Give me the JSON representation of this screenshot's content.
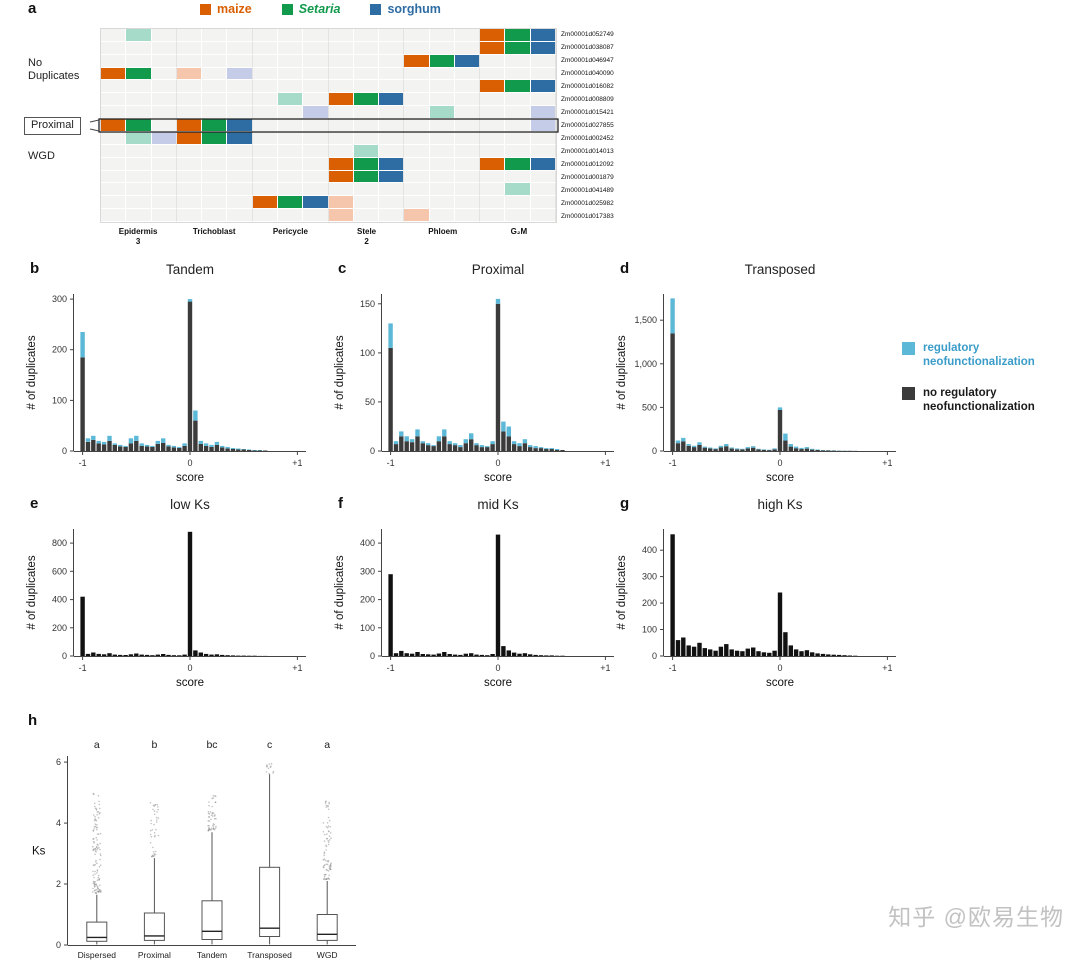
{
  "page": {
    "watermark": "知乎 @欧易生物"
  },
  "colors": {
    "maize": "#d95f02",
    "setaria": "#129a4c",
    "sorghum": "#2e6da4",
    "maize_light": "#f5c6ac",
    "setaria_light": "#a5dbc8",
    "sorghum_light": "#c5cce8",
    "regulatory": "#5bb8d7",
    "no_regulatory": "#3b3b3b",
    "single_bar": "#111111"
  },
  "panel_a": {
    "letter": "a",
    "legend": [
      {
        "label": "maize",
        "color": "#d95f02",
        "italic": false
      },
      {
        "label": "Setaria",
        "color": "#129a4c",
        "italic": true
      },
      {
        "label": "sorghum",
        "color": "#2e6da4",
        "italic": false
      }
    ],
    "column_groups": [
      {
        "lines": [
          "Epidermis",
          "3"
        ]
      },
      {
        "lines": [
          "Trichoblast"
        ]
      },
      {
        "lines": [
          "Pericycle"
        ]
      },
      {
        "lines": [
          "Stele",
          "2"
        ]
      },
      {
        "lines": [
          "Phloem"
        ]
      },
      {
        "lines": [
          "G₂M"
        ]
      }
    ],
    "row_groups": [
      {
        "label": "No Duplicates",
        "anchor_row": 3.2,
        "boxed": false
      },
      {
        "label": "Proximal",
        "anchor_row": 7.85,
        "boxed": true
      },
      {
        "label": "WGD",
        "anchor_row": 10.4,
        "boxed": false
      }
    ],
    "highlight_row": 8,
    "rows": [
      {
        "gene": "Zm00001d052749",
        "cells": {
          "1": "setaria_light",
          "15": "maize",
          "16": "setaria",
          "17": "sorghum"
        }
      },
      {
        "gene": "Zm00001d038087",
        "cells": {
          "15": "maize",
          "16": "setaria",
          "17": "sorghum"
        }
      },
      {
        "gene": "Zm00001d046947",
        "cells": {
          "12": "maize",
          "13": "setaria",
          "14": "sorghum"
        }
      },
      {
        "gene": "Zm00001d040090",
        "cells": {
          "0": "maize",
          "1": "setaria",
          "3": "maize_light",
          "5": "sorghum_light"
        }
      },
      {
        "gene": "Zm00001d016082",
        "cells": {
          "15": "maize",
          "16": "setaria",
          "17": "sorghum"
        }
      },
      {
        "gene": "Zm00001d008809",
        "cells": {
          "7": "setaria_light",
          "9": "maize",
          "10": "setaria",
          "11": "sorghum"
        }
      },
      {
        "gene": "Zm00001d015421",
        "cells": {
          "8": "sorghum_light",
          "13": "setaria_light",
          "17": "sorghum_light"
        }
      },
      {
        "gene": "Zm00001d027855",
        "cells": {
          "0": "maize",
          "1": "setaria",
          "3": "maize",
          "4": "setaria",
          "5": "sorghum",
          "17": "sorghum_light"
        }
      },
      {
        "gene": "Zm00001d002452",
        "cells": {
          "1": "setaria_light",
          "2": "sorghum_light",
          "3": "maize",
          "4": "setaria",
          "5": "sorghum"
        }
      },
      {
        "gene": "Zm00001d014013",
        "cells": {
          "10": "setaria_light"
        }
      },
      {
        "gene": "Zm00001d012092",
        "cells": {
          "9": "maize",
          "10": "setaria",
          "11": "sorghum",
          "15": "maize",
          "16": "setaria",
          "17": "sorghum"
        }
      },
      {
        "gene": "Zm00001d001879",
        "cells": {
          "9": "maize",
          "10": "setaria",
          "11": "sorghum"
        }
      },
      {
        "gene": "Zm00001d041489",
        "cells": {
          "16": "setaria_light"
        }
      },
      {
        "gene": "Zm00001d025982",
        "cells": {
          "6": "maize",
          "7": "setaria",
          "8": "sorghum",
          "9": "maize_light"
        }
      },
      {
        "gene": "Zm00001d017383",
        "cells": {
          "9": "maize_light",
          "12": "maize_light"
        }
      }
    ]
  },
  "legend_bcd": {
    "items": [
      {
        "lines": [
          "regulatory",
          "neofunctionalization"
        ],
        "swatch": "#5bb8d7",
        "text_color": "#3a9cc9"
      },
      {
        "lines": [
          "no regulatory",
          "neofunctionalization"
        ],
        "swatch": "#3b3b3b",
        "text_color": "#1a1a1a"
      }
    ]
  },
  "chart_data": [
    {
      "panel": "b",
      "type": "bar",
      "title": "Tandem",
      "xlabel": "score",
      "ylabel": "# of duplicates",
      "xlim": [
        -1.08,
        1.08
      ],
      "ylim": [
        0,
        310
      ],
      "yticks": [
        0,
        100,
        200,
        300
      ],
      "xticks": [
        -1,
        0,
        1
      ],
      "xtick_labels": [
        "-1",
        "0",
        "+1"
      ],
      "binwidth": 0.05,
      "x": [
        -1,
        -0.95,
        -0.9,
        -0.85,
        -0.8,
        -0.75,
        -0.7,
        -0.65,
        -0.6,
        -0.55,
        -0.5,
        -0.45,
        -0.4,
        -0.35,
        -0.3,
        -0.25,
        -0.2,
        -0.15,
        -0.1,
        -0.05,
        0,
        0.05,
        0.1,
        0.15,
        0.2,
        0.25,
        0.3,
        0.35,
        0.4,
        0.45,
        0.5,
        0.55,
        0.6,
        0.65,
        0.7
      ],
      "series": [
        {
          "name": "no regulatory neofunctionalization",
          "values": [
            185,
            18,
            22,
            15,
            13,
            20,
            12,
            9,
            8,
            15,
            20,
            10,
            9,
            8,
            14,
            16,
            9,
            7,
            6,
            10,
            295,
            60,
            14,
            10,
            8,
            12,
            7,
            5,
            4,
            3,
            3,
            2,
            1,
            1,
            1
          ]
        },
        {
          "name": "regulatory neofunctionalization",
          "values": [
            50,
            7,
            8,
            5,
            5,
            10,
            3,
            3,
            2,
            10,
            10,
            5,
            3,
            2,
            6,
            9,
            3,
            3,
            2,
            5,
            5,
            20,
            6,
            5,
            4,
            6,
            3,
            3,
            2,
            2,
            1,
            1,
            1,
            1,
            0
          ]
        }
      ]
    },
    {
      "panel": "c",
      "type": "bar",
      "title": "Proximal",
      "xlabel": "score",
      "ylabel": "# of duplicates",
      "xlim": [
        -1.08,
        1.08
      ],
      "ylim": [
        0,
        160
      ],
      "yticks": [
        0,
        50,
        100,
        150
      ],
      "xticks": [
        -1,
        0,
        1
      ],
      "xtick_labels": [
        "-1",
        "0",
        "+1"
      ],
      "binwidth": 0.05,
      "x": [
        -1,
        -0.95,
        -0.9,
        -0.85,
        -0.8,
        -0.75,
        -0.7,
        -0.65,
        -0.6,
        -0.55,
        -0.5,
        -0.45,
        -0.4,
        -0.35,
        -0.3,
        -0.25,
        -0.2,
        -0.15,
        -0.1,
        -0.05,
        0,
        0.05,
        0.1,
        0.15,
        0.2,
        0.25,
        0.3,
        0.35,
        0.4,
        0.45,
        0.5,
        0.55,
        0.6,
        0.65,
        0.7
      ],
      "series": [
        {
          "name": "no regulatory neofunctionalization",
          "values": [
            105,
            7,
            15,
            10,
            9,
            15,
            8,
            6,
            5,
            10,
            15,
            7,
            6,
            4,
            8,
            12,
            6,
            4,
            4,
            7,
            150,
            20,
            15,
            7,
            5,
            8,
            4,
            3,
            3,
            2,
            2,
            1,
            1,
            0,
            0
          ]
        },
        {
          "name": "regulatory neofunctionalization",
          "values": [
            25,
            3,
            5,
            5,
            3,
            7,
            2,
            2,
            1,
            5,
            7,
            3,
            2,
            2,
            4,
            6,
            2,
            2,
            1,
            3,
            5,
            10,
            10,
            3,
            3,
            4,
            2,
            2,
            1,
            1,
            1,
            1,
            0,
            0,
            0
          ]
        }
      ]
    },
    {
      "panel": "d",
      "type": "bar",
      "title": "Transposed",
      "xlabel": "score",
      "ylabel": "# of duplicates",
      "xlim": [
        -1.08,
        1.08
      ],
      "ylim": [
        0,
        1800
      ],
      "yticks": [
        0,
        500,
        1000,
        1500
      ],
      "xticks": [
        -1,
        0,
        1
      ],
      "xtick_labels": [
        "-1",
        "0",
        "+1"
      ],
      "binwidth": 0.05,
      "x": [
        -1,
        -0.95,
        -0.9,
        -0.85,
        -0.8,
        -0.75,
        -0.7,
        -0.65,
        -0.6,
        -0.55,
        -0.5,
        -0.45,
        -0.4,
        -0.35,
        -0.3,
        -0.25,
        -0.2,
        -0.15,
        -0.1,
        -0.05,
        0,
        0.05,
        0.1,
        0.15,
        0.2,
        0.25,
        0.3,
        0.35,
        0.4,
        0.45,
        0.5,
        0.55,
        0.6,
        0.65,
        0.7
      ],
      "series": [
        {
          "name": "no regulatory neofunctionalization",
          "values": [
            1350,
            90,
            110,
            60,
            45,
            70,
            38,
            30,
            22,
            42,
            55,
            28,
            20,
            18,
            30,
            38,
            18,
            14,
            10,
            20,
            470,
            120,
            50,
            32,
            22,
            28,
            16,
            12,
            8,
            6,
            5,
            3,
            2,
            2,
            1
          ]
        },
        {
          "name": "regulatory neofunctionalization",
          "values": [
            400,
            30,
            40,
            20,
            15,
            30,
            12,
            10,
            8,
            18,
            25,
            12,
            10,
            7,
            15,
            17,
            7,
            6,
            5,
            10,
            30,
            80,
            30,
            18,
            13,
            17,
            9,
            6,
            4,
            4,
            3,
            2,
            2,
            1,
            1
          ]
        }
      ]
    },
    {
      "panel": "e",
      "type": "bar",
      "title": "low Ks",
      "xlabel": "score",
      "ylabel": "# of duplicates",
      "xlim": [
        -1.08,
        1.08
      ],
      "ylim": [
        0,
        900
      ],
      "yticks": [
        0,
        200,
        400,
        600,
        800
      ],
      "xticks": [
        -1,
        0,
        1
      ],
      "xtick_labels": [
        "-1",
        "0",
        "+1"
      ],
      "binwidth": 0.05,
      "bar_color": "#111111",
      "x": [
        -1,
        -0.95,
        -0.9,
        -0.85,
        -0.8,
        -0.75,
        -0.7,
        -0.65,
        -0.6,
        -0.55,
        -0.5,
        -0.45,
        -0.4,
        -0.35,
        -0.3,
        -0.25,
        -0.2,
        -0.15,
        -0.1,
        -0.05,
        0,
        0.05,
        0.1,
        0.15,
        0.2,
        0.25,
        0.3,
        0.35,
        0.4,
        0.45,
        0.5,
        0.55,
        0.6,
        0.65,
        0.7
      ],
      "values": [
        420,
        15,
        25,
        15,
        12,
        20,
        10,
        8,
        7,
        12,
        18,
        10,
        8,
        6,
        10,
        14,
        8,
        6,
        5,
        10,
        880,
        40,
        25,
        15,
        10,
        12,
        8,
        6,
        4,
        3,
        3,
        2,
        2,
        1,
        1
      ]
    },
    {
      "panel": "f",
      "type": "bar",
      "title": "mid Ks",
      "xlabel": "score",
      "ylabel": "# of duplicates",
      "xlim": [
        -1.08,
        1.08
      ],
      "ylim": [
        0,
        450
      ],
      "yticks": [
        0,
        100,
        200,
        300,
        400
      ],
      "xticks": [
        -1,
        0,
        1
      ],
      "xtick_labels": [
        "-1",
        "0",
        "+1"
      ],
      "binwidth": 0.05,
      "bar_color": "#111111",
      "x": [
        -1,
        -0.95,
        -0.9,
        -0.85,
        -0.8,
        -0.75,
        -0.7,
        -0.65,
        -0.6,
        -0.55,
        -0.5,
        -0.45,
        -0.4,
        -0.35,
        -0.3,
        -0.25,
        -0.2,
        -0.15,
        -0.1,
        -0.05,
        0,
        0.05,
        0.1,
        0.15,
        0.2,
        0.25,
        0.3,
        0.35,
        0.4,
        0.45,
        0.5,
        0.55,
        0.6,
        0.65,
        0.7
      ],
      "values": [
        290,
        10,
        18,
        10,
        8,
        14,
        7,
        6,
        5,
        9,
        14,
        7,
        5,
        4,
        8,
        10,
        5,
        4,
        3,
        7,
        430,
        35,
        20,
        12,
        8,
        10,
        6,
        4,
        3,
        2,
        2,
        1,
        1,
        0,
        0
      ]
    },
    {
      "panel": "g",
      "type": "bar",
      "title": "high Ks",
      "xlabel": "score",
      "ylabel": "# of duplicates",
      "xlim": [
        -1.08,
        1.08
      ],
      "ylim": [
        0,
        480
      ],
      "yticks": [
        0,
        100,
        200,
        300,
        400
      ],
      "xticks": [
        -1,
        0,
        1
      ],
      "xtick_labels": [
        "-1",
        "0",
        "+1"
      ],
      "binwidth": 0.05,
      "bar_color": "#111111",
      "x": [
        -1,
        -0.95,
        -0.9,
        -0.85,
        -0.8,
        -0.75,
        -0.7,
        -0.65,
        -0.6,
        -0.55,
        -0.5,
        -0.45,
        -0.4,
        -0.35,
        -0.3,
        -0.25,
        -0.2,
        -0.15,
        -0.1,
        -0.05,
        0,
        0.05,
        0.1,
        0.15,
        0.2,
        0.25,
        0.3,
        0.35,
        0.4,
        0.45,
        0.5,
        0.55,
        0.6,
        0.65,
        0.7
      ],
      "values": [
        460,
        60,
        70,
        40,
        35,
        50,
        30,
        25,
        20,
        35,
        45,
        25,
        20,
        18,
        28,
        32,
        18,
        14,
        12,
        20,
        240,
        90,
        40,
        25,
        18,
        22,
        14,
        10,
        8,
        6,
        5,
        4,
        3,
        2,
        1
      ]
    },
    {
      "panel": "h",
      "type": "boxplot",
      "title": "",
      "ylabel": "Ks",
      "ylim": [
        0,
        6.2
      ],
      "yticks": [
        0,
        2,
        4,
        6
      ],
      "categories": [
        "Dispersed",
        "Proximal",
        "Tandem",
        "Transposed",
        "WGD"
      ],
      "letters": [
        "a",
        "b",
        "bc",
        "c",
        "a"
      ],
      "boxes": [
        {
          "whisker_low": 0.02,
          "q1": 0.12,
          "median": 0.25,
          "q3": 0.75,
          "whisker_high": 1.65,
          "outliers": {
            "count": 120,
            "min": 1.7,
            "max": 5.0
          }
        },
        {
          "whisker_low": 0.02,
          "q1": 0.15,
          "median": 0.3,
          "q3": 1.05,
          "whisker_high": 2.85,
          "outliers": {
            "count": 40,
            "min": 2.9,
            "max": 4.8
          }
        },
        {
          "whisker_low": 0.02,
          "q1": 0.18,
          "median": 0.45,
          "q3": 1.45,
          "whisker_high": 3.7,
          "outliers": {
            "count": 50,
            "min": 3.75,
            "max": 4.9
          }
        },
        {
          "whisker_low": 0.02,
          "q1": 0.28,
          "median": 0.55,
          "q3": 2.55,
          "whisker_high": 5.6,
          "outliers": {
            "count": 12,
            "min": 5.62,
            "max": 5.95
          }
        },
        {
          "whisker_low": 0.02,
          "q1": 0.15,
          "median": 0.35,
          "q3": 1.0,
          "whisker_high": 2.1,
          "outliers": {
            "count": 80,
            "min": 2.15,
            "max": 5.0
          }
        }
      ]
    }
  ]
}
